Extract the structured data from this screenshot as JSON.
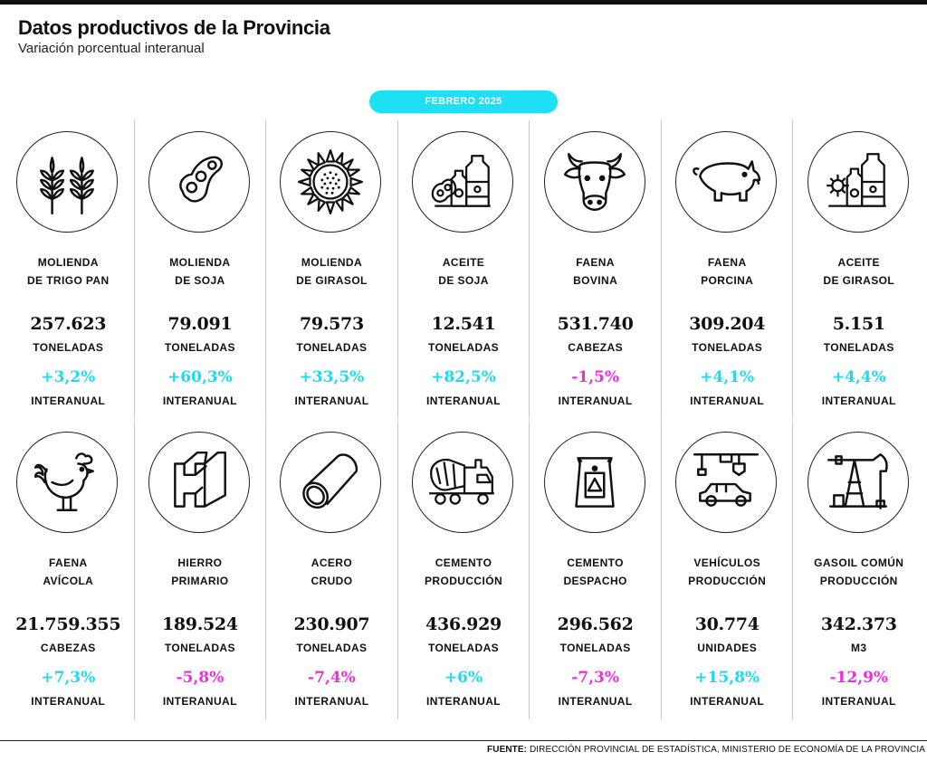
{
  "header": {
    "title": "Datos productivos de la Provincia",
    "subtitle": "Variación porcentual interanual",
    "period": "FEBRERO 2025"
  },
  "colors": {
    "positive": "#1fd9ee",
    "negative": "#ee2ee0",
    "pill": "#1ee0f4"
  },
  "items": [
    {
      "icon": "wheat-icon",
      "label1": "MOLIENDA",
      "label2": "DE TRIGO PAN",
      "value": "257.623",
      "unit": "TONELADAS",
      "change": "+3,2%",
      "change_label": "INTERANUAL",
      "trend": "positive"
    },
    {
      "icon": "soybean-icon",
      "label1": "MOLIENDA",
      "label2": "DE SOJA",
      "value": "79.091",
      "unit": "TONELADAS",
      "change": "+60,3%",
      "change_label": "INTERANUAL",
      "trend": "positive"
    },
    {
      "icon": "sunflower-icon",
      "label1": "MOLIENDA",
      "label2": "DE GIRASOL",
      "value": "79.573",
      "unit": "TONELADAS",
      "change": "+33,5%",
      "change_label": "INTERANUAL",
      "trend": "positive"
    },
    {
      "icon": "soy-oil-icon",
      "label1": "ACEITE",
      "label2": "DE SOJA",
      "value": "12.541",
      "unit": "TONELADAS",
      "change": "+82,5%",
      "change_label": "INTERANUAL",
      "trend": "positive"
    },
    {
      "icon": "cow-icon",
      "label1": "FAENA",
      "label2": "BOVINA",
      "value": "531.740",
      "unit": "CABEZAS",
      "change": "-1,5%",
      "change_label": "INTERANUAL",
      "trend": "negative"
    },
    {
      "icon": "pig-icon",
      "label1": "FAENA",
      "label2": "PORCINA",
      "value": "309.204",
      "unit": "TONELADAS",
      "change": "+4,1%",
      "change_label": "INTERANUAL",
      "trend": "positive"
    },
    {
      "icon": "sunflower-oil-icon",
      "label1": "ACEITE",
      "label2": "DE GIRASOL",
      "value": "5.151",
      "unit": "TONELADAS",
      "change": "+4,4%",
      "change_label": "INTERANUAL",
      "trend": "positive"
    },
    {
      "icon": "rooster-icon",
      "label1": "FAENA",
      "label2": "AVÍCOLA",
      "value": "21.759.355",
      "unit": "CABEZAS",
      "change": "+7,3%",
      "change_label": "INTERANUAL",
      "trend": "positive"
    },
    {
      "icon": "steel-beam-icon",
      "label1": "HIERRO",
      "label2": "PRIMARIO",
      "value": "189.524",
      "unit": "TONELADAS",
      "change": "-5,8%",
      "change_label": "INTERANUAL",
      "trend": "negative"
    },
    {
      "icon": "steel-pipe-icon",
      "label1": "ACERO",
      "label2": "CRUDO",
      "value": "230.907",
      "unit": "TONELADAS",
      "change": "-7,4%",
      "change_label": "INTERANUAL",
      "trend": "negative"
    },
    {
      "icon": "cement-mixer-icon",
      "label1": "CEMENTO",
      "label2": "PRODUCCIÓN",
      "value": "436.929",
      "unit": "TONELADAS",
      "change": "+6%",
      "change_label": "INTERANUAL",
      "trend": "positive"
    },
    {
      "icon": "cement-bag-icon",
      "label1": "CEMENTO",
      "label2": "DESPACHO",
      "value": "296.562",
      "unit": "TONELADAS",
      "change": "-7,3%",
      "change_label": "INTERANUAL",
      "trend": "negative"
    },
    {
      "icon": "car-factory-icon",
      "label1": "VEHÍCULOS",
      "label2": "PRODUCCIÓN",
      "value": "30.774",
      "unit": "UNIDADES",
      "change": "+15,8%",
      "change_label": "INTERANUAL",
      "trend": "positive"
    },
    {
      "icon": "oil-pump-icon",
      "label1": "GASOIL COMÚN",
      "label2": "PRODUCCIÓN",
      "value": "342.373",
      "unit": "M3",
      "change": "-12,9%",
      "change_label": "INTERANUAL",
      "trend": "negative"
    }
  ],
  "footer": {
    "source_label": "FUENTE:",
    "source_text": "DIRECCIÓN PROVINCIAL DE ESTADÍSTICA, MINISTERIO DE ECONOMÍA DE LA PROVINCIA"
  }
}
